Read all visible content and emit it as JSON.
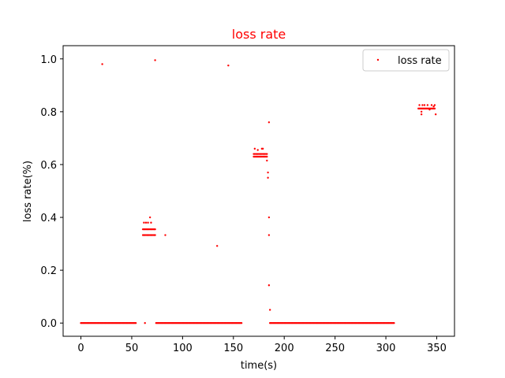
{
  "chart_data": {
    "type": "scatter",
    "title": "loss rate",
    "xlabel": "time(s)",
    "ylabel": "loss rate(%)",
    "xlim": [
      -17.5,
      367.5
    ],
    "ylim": [
      -0.05,
      1.05
    ],
    "xticks": [
      0,
      50,
      100,
      150,
      200,
      250,
      300,
      350
    ],
    "yticks": [
      0.0,
      0.2,
      0.4,
      0.6,
      0.8,
      1.0
    ],
    "grid": false,
    "legend_position": "top-right",
    "colors": {
      "series": "#ff0000",
      "title": "#ff0000"
    },
    "series": [
      {
        "name": "loss rate",
        "runs": [
          {
            "x_start": 0,
            "x_end": 54,
            "step": 1,
            "y": 0.0
          },
          {
            "x_start": 74,
            "x_end": 158,
            "step": 1,
            "y": 0.0
          },
          {
            "x_start": 186,
            "x_end": 308,
            "step": 1,
            "y": 0.0
          },
          {
            "x_start": 61,
            "x_end": 73,
            "step": 1,
            "y": 0.355
          },
          {
            "x_start": 61,
            "x_end": 73,
            "step": 1,
            "y": 0.333
          },
          {
            "x_start": 170,
            "x_end": 183,
            "step": 1,
            "y": 0.64
          },
          {
            "x_start": 170,
            "x_end": 183,
            "step": 1,
            "y": 0.63
          },
          {
            "x_start": 332,
            "x_end": 348,
            "step": 1,
            "y": 0.812
          }
        ],
        "points": [
          [
            21,
            0.98
          ],
          [
            73,
            0.995
          ],
          [
            145,
            0.975
          ],
          [
            63,
            0.0
          ],
          [
            62,
            0.38
          ],
          [
            64,
            0.38
          ],
          [
            66,
            0.38
          ],
          [
            68,
            0.4
          ],
          [
            69,
            0.38
          ],
          [
            83,
            0.333
          ],
          [
            134,
            0.292
          ],
          [
            171,
            0.66
          ],
          [
            174,
            0.655
          ],
          [
            178,
            0.66
          ],
          [
            179,
            0.66
          ],
          [
            183,
            0.615
          ],
          [
            185,
            0.76
          ],
          [
            184,
            0.57
          ],
          [
            184,
            0.55
          ],
          [
            185,
            0.4
          ],
          [
            185,
            0.333
          ],
          [
            185,
            0.143
          ],
          [
            186,
            0.05
          ],
          [
            333,
            0.825
          ],
          [
            335,
            0.8
          ],
          [
            336,
            0.825
          ],
          [
            338,
            0.825
          ],
          [
            341,
            0.825
          ],
          [
            343,
            0.808
          ],
          [
            345,
            0.825
          ],
          [
            347,
            0.82
          ],
          [
            348,
            0.825
          ],
          [
            349,
            0.79
          ],
          [
            335,
            0.79
          ]
        ]
      }
    ]
  }
}
